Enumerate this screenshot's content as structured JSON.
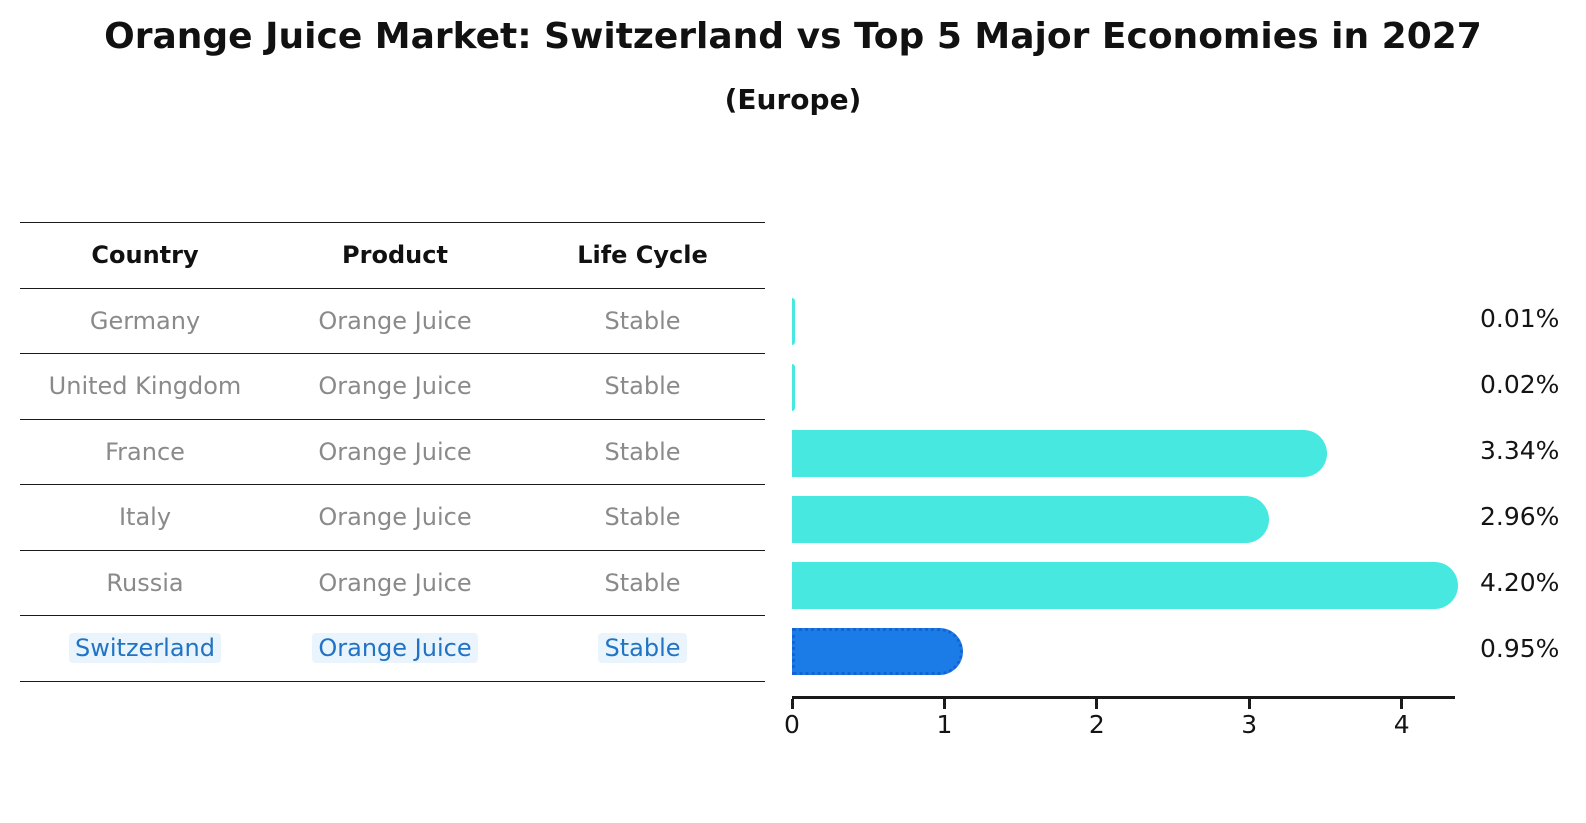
{
  "title": "Orange Juice Market: Switzerland vs Top 5 Major Economies in 2027",
  "subtitle": "(Europe)",
  "table": {
    "headers": [
      "Country",
      "Product",
      "Life Cycle"
    ],
    "rows": [
      {
        "country": "Germany",
        "product": "Orange Juice",
        "life_cycle": "Stable",
        "highlight": false
      },
      {
        "country": "United Kingdom",
        "product": "Orange Juice",
        "life_cycle": "Stable",
        "highlight": false
      },
      {
        "country": "France",
        "product": "Orange Juice",
        "life_cycle": "Stable",
        "highlight": false
      },
      {
        "country": "Italy",
        "product": "Orange Juice",
        "life_cycle": "Stable",
        "highlight": false
      },
      {
        "country": "Russia",
        "product": "Orange Juice",
        "life_cycle": "Stable",
        "highlight": false
      },
      {
        "country": "Switzerland",
        "product": "Orange Juice",
        "life_cycle": "Stable",
        "highlight": true
      }
    ]
  },
  "chart_data": {
    "type": "bar",
    "orientation": "horizontal",
    "title": "Orange Juice Market: Switzerland vs Top 5 Major Economies in 2027 (Europe)",
    "categories": [
      "Germany",
      "United Kingdom",
      "France",
      "Italy",
      "Russia",
      "Switzerland"
    ],
    "values": [
      0.01,
      0.02,
      3.34,
      2.96,
      4.2,
      0.95
    ],
    "value_labels": [
      "0.01%",
      "0.02%",
      "3.34%",
      "2.96%",
      "4.20%",
      "0.95%"
    ],
    "unit": "%",
    "x_ticks": [
      "0",
      "1",
      "2",
      "3",
      "4"
    ],
    "xlim": [
      0,
      4.35
    ],
    "grid": false,
    "legend": false,
    "highlight_category": "Switzerland",
    "colors": {
      "bar_default": "#46E8DF",
      "bar_highlight": "#1B7CE8",
      "bar_highlight_border": "#1563D2",
      "highlight_text": "#2173C4",
      "row_text": "#8A8A8A",
      "axis_text": "#141414"
    }
  }
}
